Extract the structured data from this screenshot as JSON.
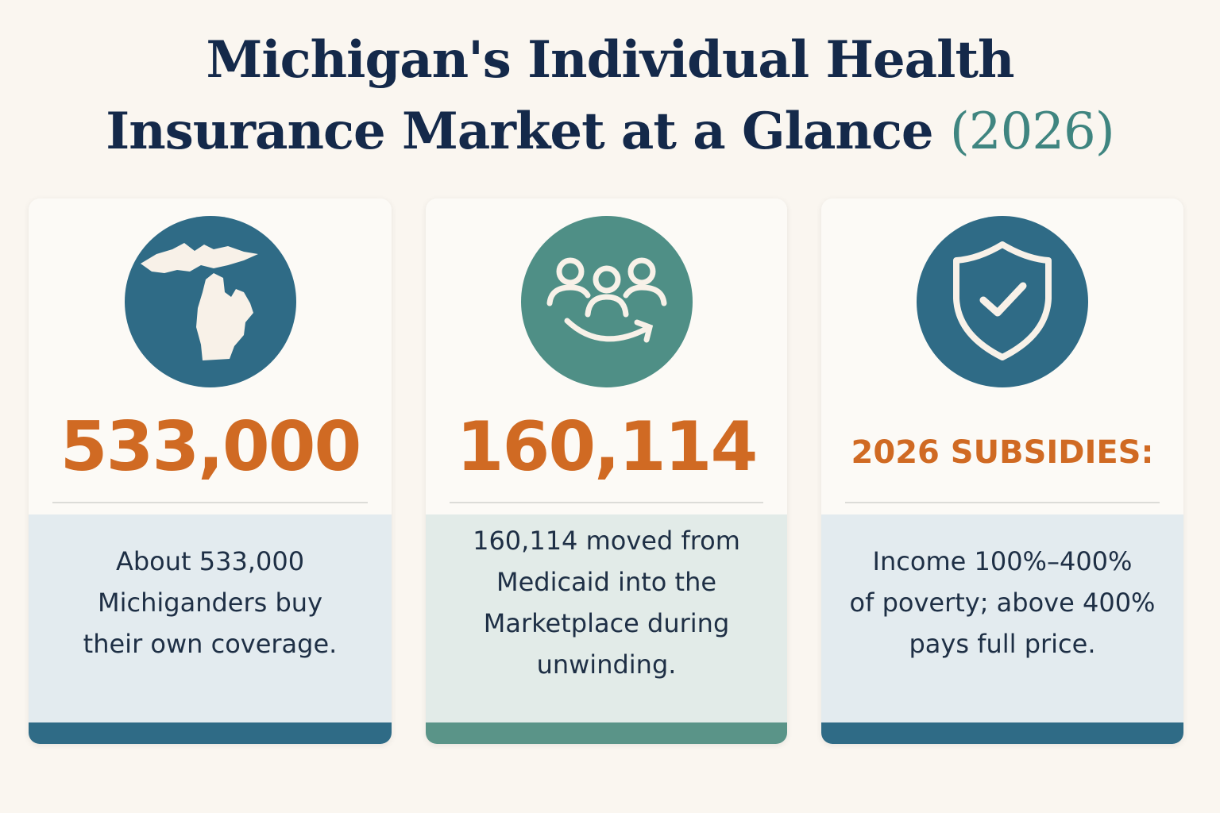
{
  "header": {
    "title_line1": "Michigan's Individual Health",
    "title_line2": "Insurance Market at a Glance",
    "title_year": "(2026)"
  },
  "cards": [
    {
      "stat": "533,000",
      "description": [
        "About 533,000",
        "Michiganders buy",
        "their own coverage."
      ]
    },
    {
      "stat": "160,114",
      "description": [
        "160,114 moved from",
        "Medicaid into the",
        "Marketplace during",
        "unwinding."
      ]
    },
    {
      "stat": "2026 SUBSIDIES:",
      "description": [
        "Income 100%–400%",
        "of poverty; above 400%",
        "pays full price."
      ]
    }
  ]
}
